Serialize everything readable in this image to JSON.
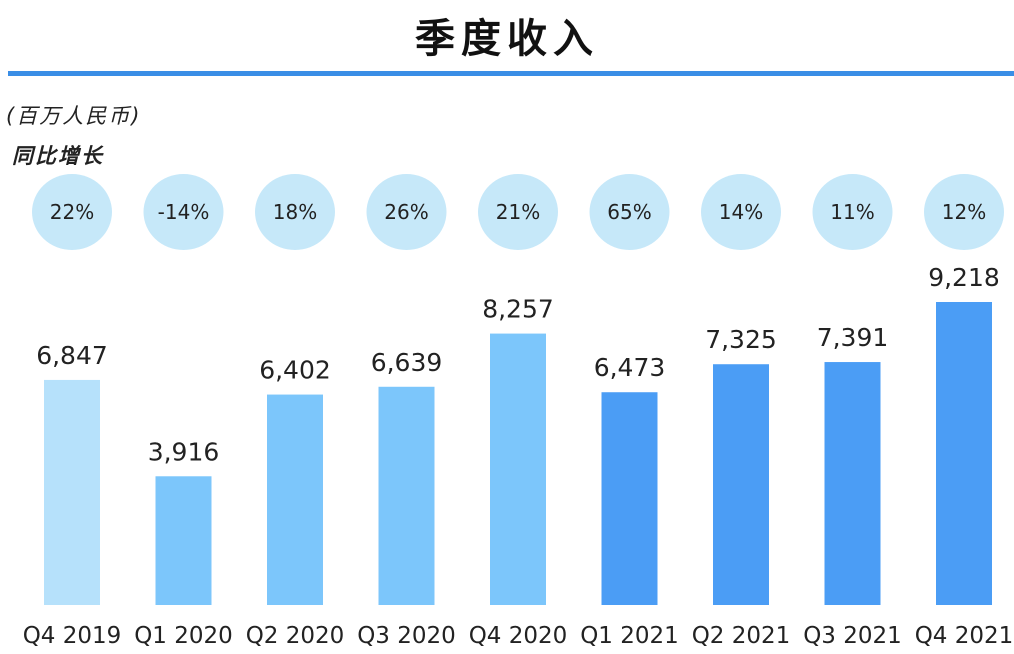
{
  "header": {
    "title": "季度收入",
    "unit": "(百万人民币)",
    "growth_label": "同比增长"
  },
  "colors": {
    "rule": "#3a8ee6",
    "bubble": "#c6e8f9",
    "light": "#b6e1fb",
    "mid": "#7cc6fb",
    "dark": "#4b9df5"
  },
  "chart_data": {
    "type": "bar",
    "title": "季度收入",
    "ylabel": "(百万人民币)",
    "xlabel": "",
    "categories": [
      "Q4 2019",
      "Q1 2020",
      "Q2 2020",
      "Q3 2020",
      "Q4 2020",
      "Q1 2021",
      "Q2 2021",
      "Q3 2021",
      "Q4 2021"
    ],
    "values": [
      6847,
      3916,
      6402,
      6639,
      8257,
      6473,
      7325,
      7391,
      9218
    ],
    "value_labels": [
      "6,847",
      "3,916",
      "6,402",
      "6,639",
      "8,257",
      "6,473",
      "7,325",
      "7,391",
      "9,218"
    ],
    "yoy_growth": [
      "22%",
      "-14%",
      "18%",
      "26%",
      "21%",
      "65%",
      "14%",
      "11%",
      "12%"
    ],
    "bar_color_groups": [
      "light",
      "mid",
      "mid",
      "mid",
      "mid",
      "dark",
      "dark",
      "dark",
      "dark"
    ],
    "ylim": [
      0,
      10000
    ],
    "grid": false
  }
}
